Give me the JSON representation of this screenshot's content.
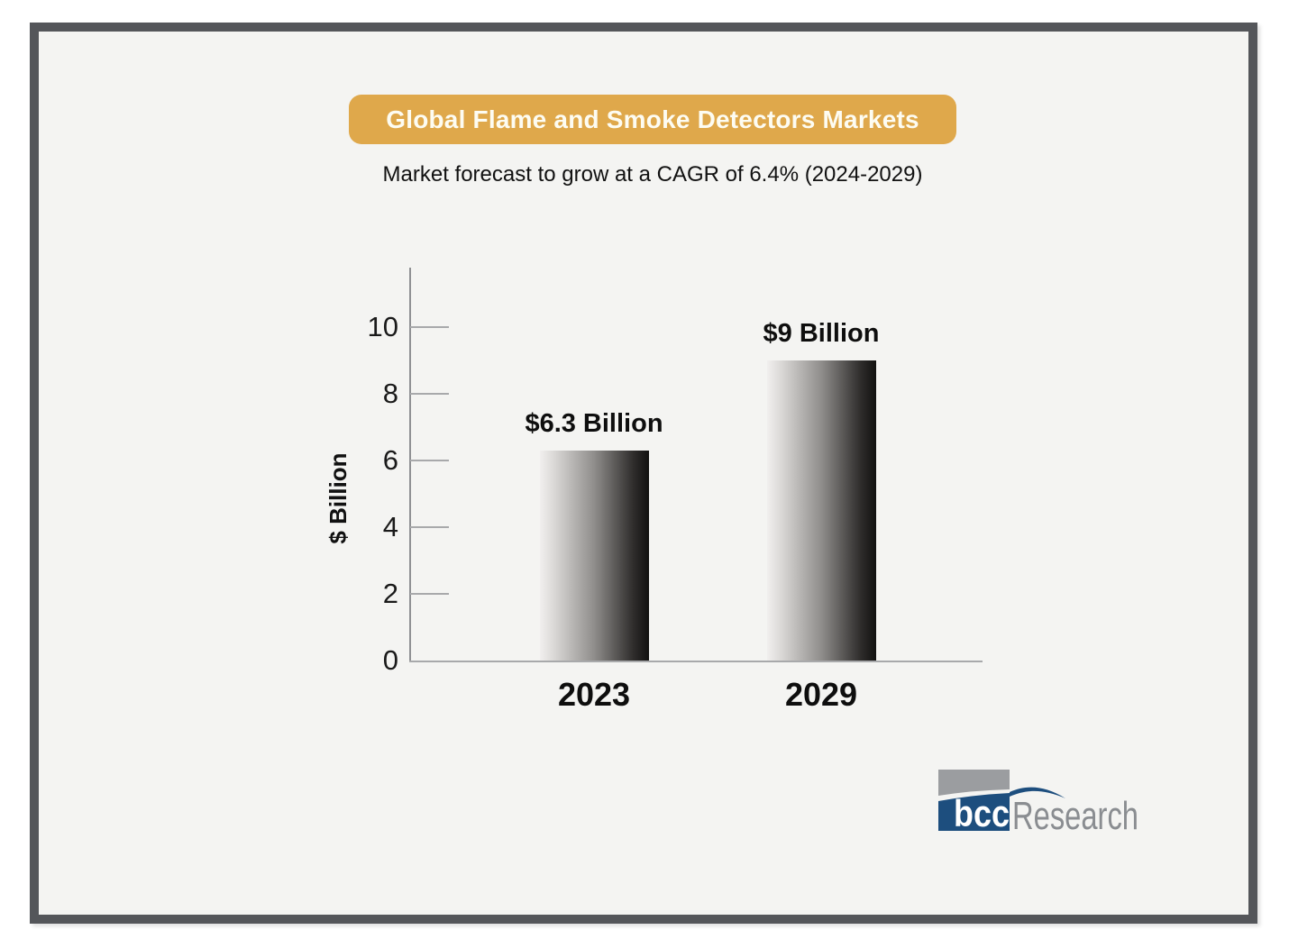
{
  "header": {
    "title": "Global Flame and Smoke Detectors Markets",
    "subtitle": "Market forecast to grow at a CAGR of 6.4% (2024-2029)"
  },
  "chart_data": {
    "type": "bar",
    "categories": [
      "2023",
      "2029"
    ],
    "values": [
      6.3,
      9
    ],
    "bar_labels": [
      "$6.3 Billion",
      "$9 Billion"
    ],
    "title": "Global Flame and Smoke Detectors Markets",
    "xlabel": "",
    "ylabel": "$ Billion",
    "yticks": [
      0,
      2,
      4,
      6,
      8,
      10
    ],
    "ylim": [
      0,
      11.8
    ],
    "grid": false,
    "legend": false,
    "bar_fill": "gray-gradient-left-light-to-right-dark"
  },
  "branding": {
    "logo_text_bcc": "bcc",
    "logo_text_research": "Research"
  },
  "colors": {
    "banner_bg": "#dfa84b",
    "banner_text": "#fdfcf2",
    "frame": "#54565a",
    "inner_bg": "#f4f4f2",
    "axis_dark": "#8f9093",
    "axis_light": "#a8a9ab",
    "logo_blue": "#1d4e7e",
    "logo_gray": "#9b9da0",
    "research_gray": "#8a8d91"
  }
}
